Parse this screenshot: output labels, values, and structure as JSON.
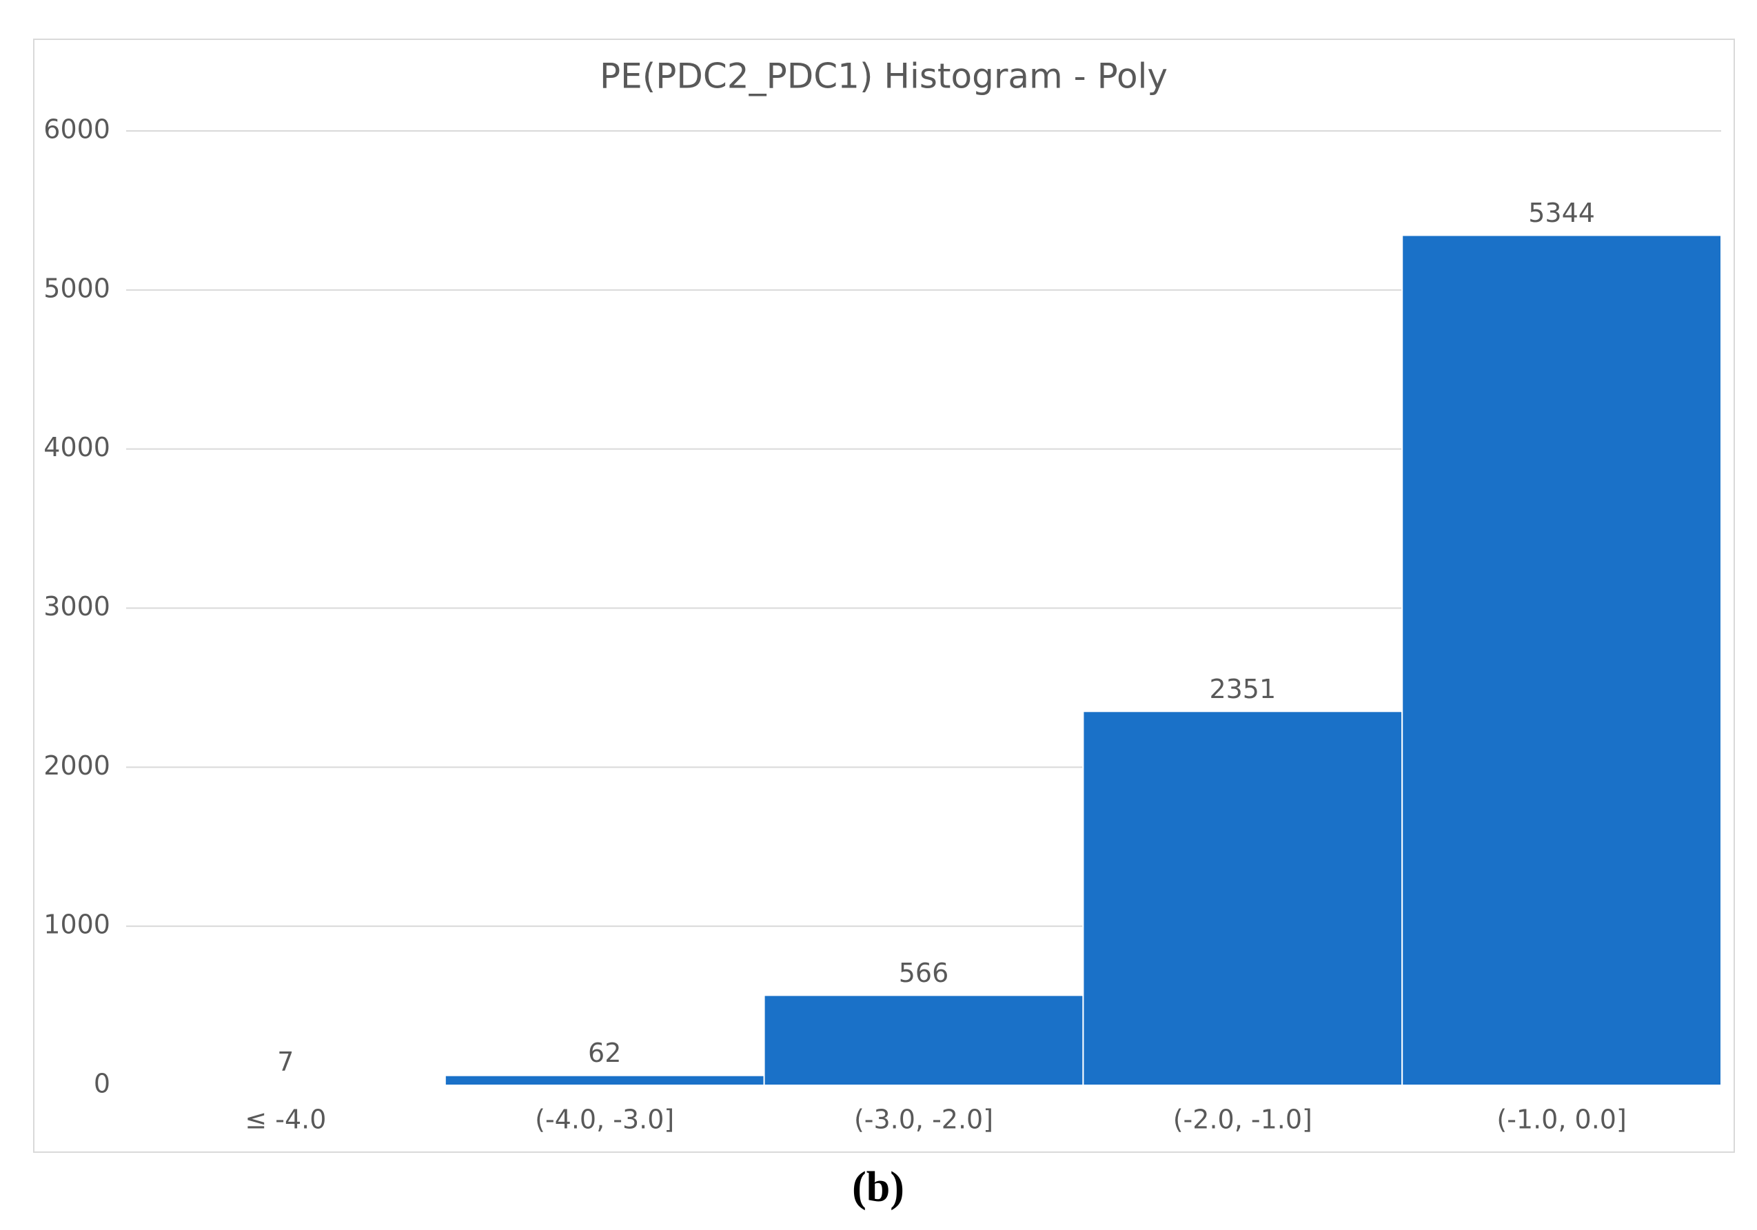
{
  "chart_data": {
    "type": "bar",
    "title": "PE(PDC2_PDC1) Histogram - Poly",
    "categories": [
      "≤ -4.0",
      "(-4.0, -3.0]",
      "(-3.0, -2.0]",
      "(-2.0, -1.0]",
      "(-1.0, 0.0]"
    ],
    "values": [
      7,
      62,
      566,
      2351,
      5344
    ],
    "color": "#1a71c8",
    "ylim": [
      0,
      6000
    ],
    "yticks": [
      0,
      1000,
      2000,
      3000,
      4000,
      5000,
      6000
    ],
    "grid": true
  },
  "caption": "(b)"
}
